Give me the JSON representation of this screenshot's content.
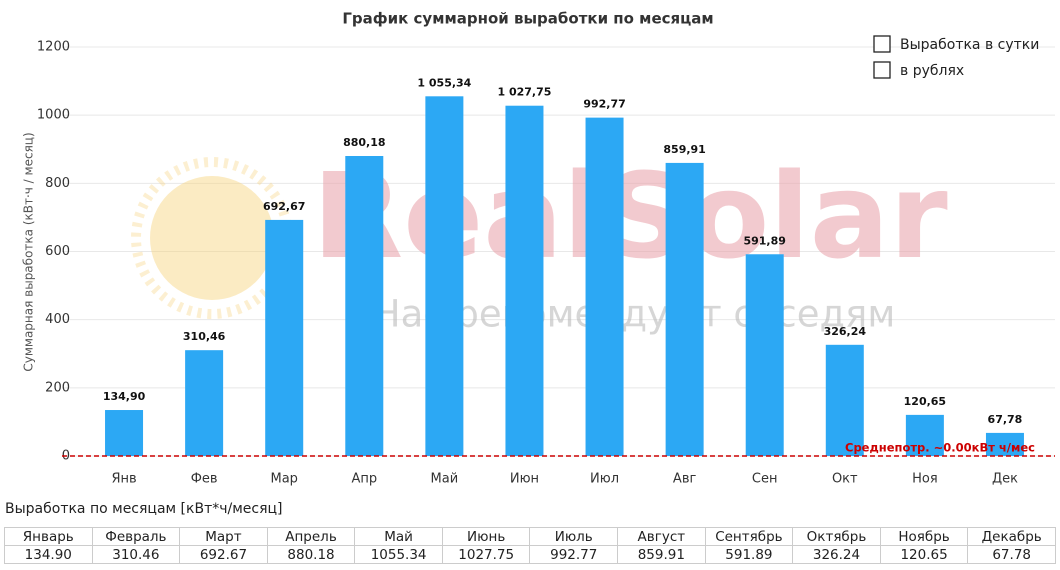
{
  "chart_data": {
    "type": "bar",
    "title": "График суммарной выработки по месяцам",
    "ylabel": "Суммарная выработка (кВт·ч / месяц)",
    "categories": [
      "Янв",
      "Фев",
      "Мар",
      "Апр",
      "Май",
      "Июн",
      "Июл",
      "Авг",
      "Сен",
      "Окт",
      "Ноя",
      "Дек"
    ],
    "values": [
      134.9,
      310.46,
      692.67,
      880.18,
      1055.34,
      1027.75,
      992.77,
      859.91,
      591.89,
      326.24,
      120.65,
      67.78
    ],
    "value_labels": [
      "134,90",
      "310,46",
      "692,67",
      "880,18",
      "1 055,34",
      "1 027,75",
      "992,77",
      "859,91",
      "591,89",
      "326,24",
      "120,65",
      "67,78"
    ],
    "color": "#2ca8f4",
    "ylim": [
      0,
      1200
    ],
    "yticks": [
      0,
      200,
      400,
      600,
      800,
      1000,
      1200
    ],
    "grid": true,
    "average": {
      "value": 0,
      "label": "Среднепотр. ~0.00кВт ч/мес",
      "color": "#cc0000"
    },
    "options": [
      "Выработка в сутки",
      "в рублях"
    ],
    "watermark": {
      "title": "RealSolar",
      "subtitle": "Нас рекомендуют соседям"
    }
  },
  "table": {
    "title": "Выработка по месяцам [кВт*ч/месяц]",
    "header": [
      "Январь",
      "Февраль",
      "Март",
      "Апрель",
      "Май",
      "Июнь",
      "Июль",
      "Август",
      "Сентябрь",
      "Октябрь",
      "Ноябрь",
      "Декабрь"
    ],
    "rows": [
      [
        "134.90",
        "310.46",
        "692.67",
        "880.18",
        "1055.34",
        "1027.75",
        "992.77",
        "859.91",
        "591.89",
        "326.24",
        "120.65",
        "67.78"
      ]
    ]
  }
}
